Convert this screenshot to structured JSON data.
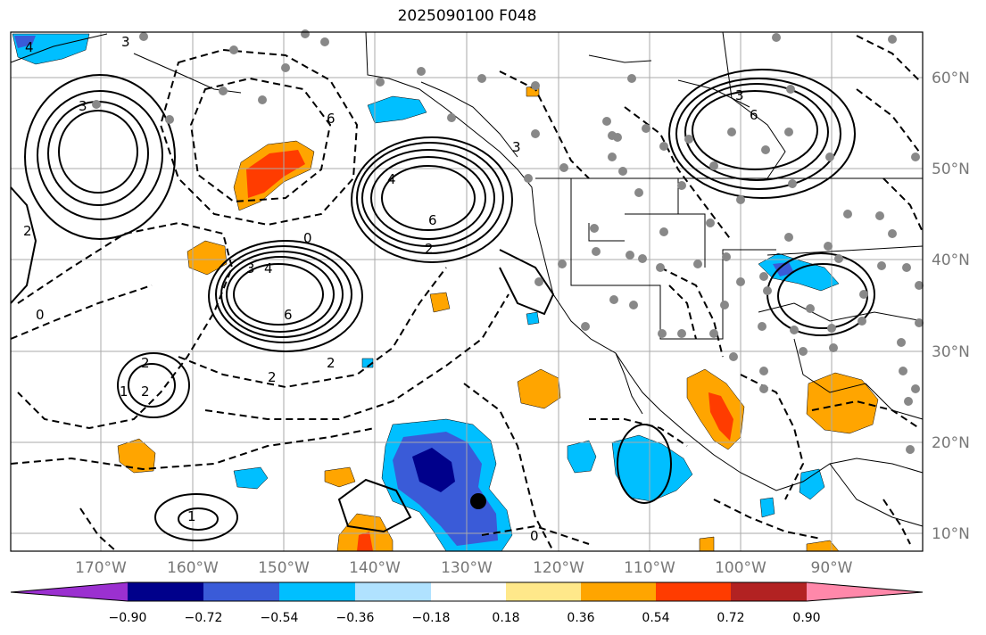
{
  "title": "2025090100 F048",
  "map": {
    "lon_labels": [
      "170°W",
      "160°W",
      "150°W",
      "140°W",
      "130°W",
      "120°W",
      "110°W",
      "100°W",
      "90°W"
    ],
    "lat_labels": [
      "60°N",
      "50°N",
      "40°N",
      "30°N",
      "20°N",
      "10°N"
    ],
    "contour_labels": [
      "4",
      "3",
      "3",
      "6",
      "3",
      "4",
      "6",
      "2",
      "0",
      "3",
      "4",
      "6",
      "2",
      "2",
      "0",
      "2",
      "1",
      "2",
      "0",
      "2",
      "1",
      "6",
      "3"
    ]
  },
  "colorbar": {
    "ticks": [
      "−0.90",
      "−0.72",
      "−0.54",
      "−0.36",
      "−0.18",
      "0.18",
      "0.36",
      "0.54",
      "0.72",
      "0.90"
    ],
    "colors": [
      "#9b30d0",
      "#00008b",
      "#3a5bd8",
      "#00bfff",
      "#b0e2ff",
      "#ffffff",
      "#ffe88a",
      "#ffa500",
      "#ff3c00",
      "#b22222",
      "#ff88aa"
    ]
  }
}
